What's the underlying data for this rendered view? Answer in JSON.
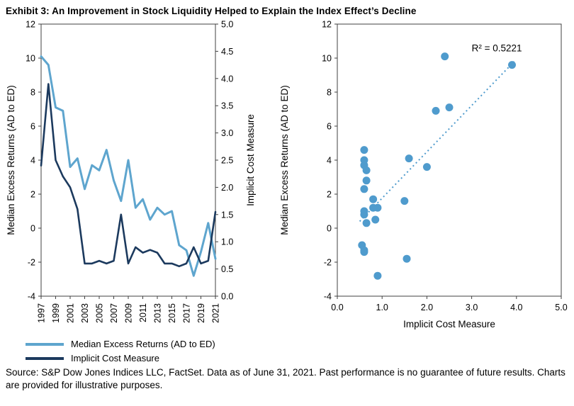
{
  "page": {
    "title": "Exhibit 3: An Improvement in Stock Liquidity Helped to Explain the Index Effect’s Decline",
    "source": "Source: S&P Dow Jones Indices LLC, FactSet.  Data as of June 31, 2021.  Past performance is no guarantee of future results.  Charts are provided for illustrative purposes."
  },
  "colors": {
    "light_blue": "#5EA5CE",
    "navy": "#1C3A5E",
    "dot": "#4F9BCD",
    "axis": "#404040"
  },
  "legend": [
    {
      "label": "Median Excess Returns (AD to ED)",
      "color_key": "light_blue"
    },
    {
      "label": "Implicit Cost Measure",
      "color_key": "navy"
    }
  ],
  "chart_data": [
    {
      "type": "line",
      "x": [
        1997,
        1998,
        1999,
        2000,
        2001,
        2002,
        2003,
        2004,
        2005,
        2006,
        2007,
        2008,
        2009,
        2010,
        2011,
        2012,
        2013,
        2014,
        2015,
        2016,
        2017,
        2018,
        2019,
        2020,
        2021
      ],
      "x_tick_years": [
        "1997",
        "1999",
        "2001",
        "2003",
        "2005",
        "2007",
        "2009",
        "2011",
        "2013",
        "2015",
        "2017",
        "2019",
        "2021"
      ],
      "left_axis": {
        "label": "Median Excess Returns (AD to ED)",
        "min": -4,
        "max": 12,
        "ticks": [
          "-4",
          "-2",
          "0",
          "2",
          "4",
          "6",
          "8",
          "10",
          "12"
        ]
      },
      "right_axis": {
        "label": "Implicit Cost Measure",
        "min": 0,
        "max": 5,
        "ticks": [
          "0.0",
          "0.5",
          "1.0",
          "1.5",
          "2.0",
          "2.5",
          "3.0",
          "3.5",
          "4.0",
          "4.5",
          "5.0"
        ]
      },
      "series": [
        {
          "name": "Median Excess Returns (AD to ED)",
          "axis": "left",
          "color_key": "light_blue",
          "values": [
            10.1,
            9.6,
            7.1,
            6.9,
            3.6,
            4.1,
            2.3,
            3.7,
            3.4,
            4.6,
            2.8,
            1.6,
            4.0,
            1.2,
            1.7,
            0.5,
            1.2,
            0.8,
            1.0,
            -1.0,
            -1.3,
            -2.8,
            -1.4,
            0.3,
            -1.8
          ]
        },
        {
          "name": "Implicit Cost Measure",
          "axis": "right",
          "color_key": "navy",
          "values": [
            2.4,
            3.9,
            2.5,
            2.2,
            2.0,
            1.6,
            0.6,
            0.6,
            0.65,
            0.6,
            0.65,
            1.5,
            0.6,
            0.9,
            0.8,
            0.85,
            0.8,
            0.6,
            0.6,
            0.55,
            0.6,
            0.9,
            0.6,
            0.65,
            1.55
          ]
        }
      ]
    },
    {
      "type": "scatter",
      "xlabel": "Implicit Cost Measure",
      "ylabel": "Median Excess Returns (AD to ED)",
      "xlim": [
        0,
        5
      ],
      "ylim": [
        -4,
        12
      ],
      "x_ticks": [
        "0.0",
        "1.0",
        "2.0",
        "3.0",
        "4.0",
        "5.0"
      ],
      "y_ticks": [
        "-4",
        "-2",
        "0",
        "2",
        "4",
        "6",
        "8",
        "10",
        "12"
      ],
      "points": [
        [
          2.4,
          10.1
        ],
        [
          3.9,
          9.6
        ],
        [
          2.5,
          7.1
        ],
        [
          2.2,
          6.9
        ],
        [
          2.0,
          3.6
        ],
        [
          1.6,
          4.1
        ],
        [
          0.6,
          2.3
        ],
        [
          0.6,
          3.7
        ],
        [
          0.65,
          3.4
        ],
        [
          0.6,
          4.6
        ],
        [
          0.65,
          2.8
        ],
        [
          1.5,
          1.6
        ],
        [
          0.6,
          4.0
        ],
        [
          0.9,
          1.2
        ],
        [
          0.8,
          1.7
        ],
        [
          0.85,
          0.5
        ],
        [
          0.8,
          1.2
        ],
        [
          0.6,
          0.8
        ],
        [
          0.6,
          1.0
        ],
        [
          0.55,
          -1.0
        ],
        [
          0.6,
          -1.3
        ],
        [
          0.9,
          -2.8
        ],
        [
          0.6,
          -1.4
        ],
        [
          0.65,
          0.3
        ],
        [
          1.55,
          -1.8
        ]
      ],
      "trendline": {
        "x1": 0.5,
        "y1": 0.4,
        "x2": 3.95,
        "y2": 9.8
      },
      "r_squared": "R² = 0.5221"
    }
  ]
}
